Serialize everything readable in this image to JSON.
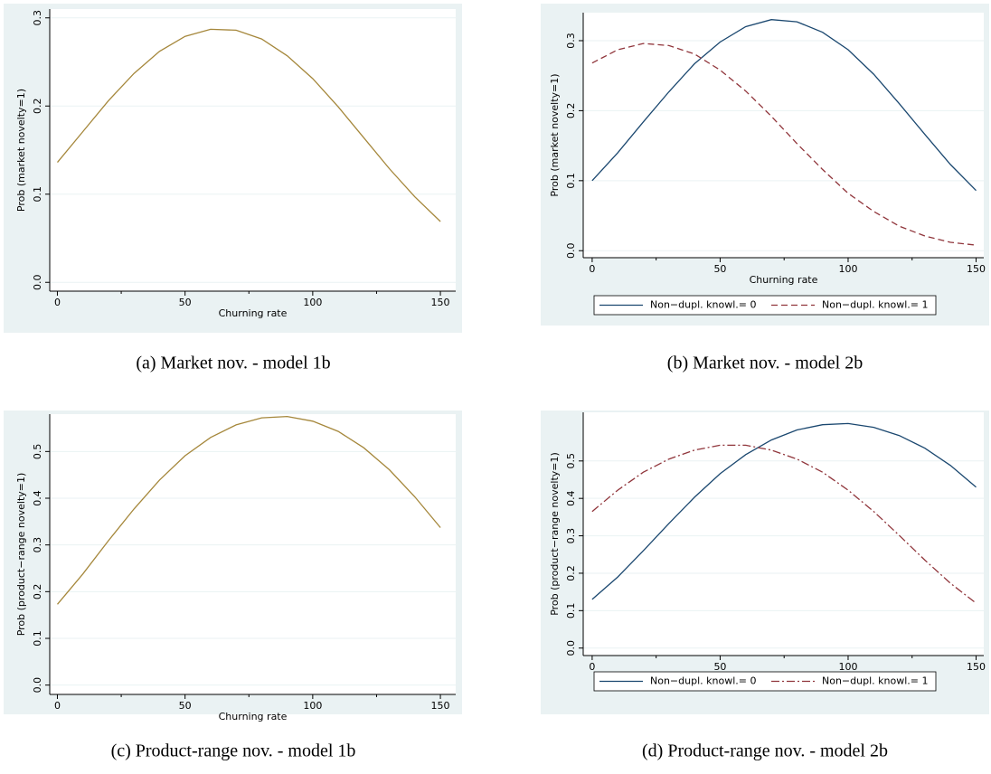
{
  "chart_data": [
    {
      "type": "line",
      "caption": "(a) Market nov. - model 1b",
      "xlabel": "Churning rate",
      "ylabel": "Prob (market novelty=1)",
      "x": [
        0,
        10,
        20,
        30,
        40,
        50,
        60,
        70,
        80,
        90,
        100,
        110,
        120,
        130,
        140,
        150
      ],
      "series": [
        {
          "color": "#a5873b",
          "style": "solid",
          "values": [
            0.136,
            0.171,
            0.206,
            0.237,
            0.262,
            0.279,
            0.287,
            0.286,
            0.276,
            0.257,
            0.231,
            0.199,
            0.164,
            0.129,
            0.097,
            0.069
          ]
        }
      ],
      "xlim": [
        -3,
        156
      ],
      "xticks": [
        0,
        50,
        100,
        150
      ],
      "xminorticks": [
        25,
        75,
        125
      ],
      "ylim": [
        -0.01,
        0.31
      ],
      "yticks": [
        {
          "value": 0,
          "label": "0.0"
        },
        0.1,
        0.2,
        0.3
      ],
      "grid": true
    },
    {
      "type": "line",
      "caption": "(b) Market nov. - model 2b",
      "xlabel": "Churning rate",
      "ylabel": "Prob (market novelty=1)",
      "x": [
        0,
        10,
        20,
        30,
        40,
        50,
        60,
        70,
        80,
        90,
        100,
        110,
        120,
        130,
        140,
        150
      ],
      "series": [
        {
          "name": "Non−dupl. knowl.= 0",
          "color": "#1a476f",
          "style": "solid",
          "values": [
            0.1,
            0.14,
            0.184,
            0.227,
            0.267,
            0.298,
            0.32,
            0.33,
            0.327,
            0.312,
            0.287,
            0.252,
            0.21,
            0.166,
            0.123,
            0.086
          ]
        },
        {
          "name": "Non−dupl. knowl.= 1",
          "color": "#90353b",
          "style": "dash",
          "values": [
            0.268,
            0.287,
            0.296,
            0.293,
            0.281,
            0.258,
            0.228,
            0.192,
            0.153,
            0.116,
            0.082,
            0.056,
            0.035,
            0.021,
            0.012,
            0.008
          ]
        }
      ],
      "xlim": [
        -3.5,
        153
      ],
      "xticks": [
        0,
        50,
        100,
        150
      ],
      "xminorticks": [
        25,
        75,
        125
      ],
      "ylim": [
        -0.01,
        0.34
      ],
      "yticks": [
        {
          "value": 0,
          "label": "0.0"
        },
        0.1,
        0.2,
        0.3
      ],
      "grid": true,
      "legend": "bottom"
    },
    {
      "type": "line",
      "caption": "(c) Product-range nov. - model 1b",
      "xlabel": "Churning rate",
      "ylabel": "Prob (product−range novelty=1)",
      "x": [
        0,
        10,
        20,
        30,
        40,
        50,
        60,
        70,
        80,
        90,
        100,
        110,
        120,
        130,
        140,
        150
      ],
      "series": [
        {
          "color": "#a5873b",
          "style": "solid",
          "values": [
            0.173,
            0.238,
            0.309,
            0.377,
            0.439,
            0.491,
            0.53,
            0.557,
            0.572,
            0.575,
            0.565,
            0.543,
            0.508,
            0.461,
            0.403,
            0.337
          ]
        }
      ],
      "xlim": [
        -3,
        156
      ],
      "xticks": [
        0,
        50,
        100,
        150
      ],
      "xminorticks": [
        25,
        75,
        125
      ],
      "ylim": [
        -0.02,
        0.58
      ],
      "yticks": [
        {
          "value": 0,
          "label": "0.0"
        },
        0.1,
        0.2,
        0.3,
        0.4,
        0.5
      ],
      "grid": true
    },
    {
      "type": "line",
      "caption": "(d) Product-range nov. - model 2b",
      "xlabel": "Churning rate",
      "ylabel": "Prob (product−range novelty=1)",
      "x": [
        0,
        10,
        20,
        30,
        40,
        50,
        60,
        70,
        80,
        90,
        100,
        110,
        120,
        130,
        140,
        150
      ],
      "series": [
        {
          "name": "Non−dupl. knowl.= 0",
          "color": "#1a476f",
          "style": "solid",
          "values": [
            0.13,
            0.19,
            0.26,
            0.333,
            0.403,
            0.466,
            0.517,
            0.556,
            0.583,
            0.597,
            0.6,
            0.59,
            0.568,
            0.534,
            0.488,
            0.43
          ]
        },
        {
          "name": "Non−dupl. knowl.= 1",
          "color": "#90353b",
          "style": "dashdot",
          "values": [
            0.365,
            0.422,
            0.47,
            0.505,
            0.529,
            0.542,
            0.542,
            0.529,
            0.505,
            0.47,
            0.422,
            0.365,
            0.301,
            0.235,
            0.173,
            0.12
          ]
        }
      ],
      "xlim": [
        -3.5,
        153
      ],
      "xticks": [
        0,
        50,
        100,
        150
      ],
      "xminorticks": [
        25,
        75,
        125
      ],
      "ylim": [
        -0.02,
        0.63
      ],
      "yticks": [
        {
          "value": 0,
          "label": "0.0"
        },
        0.1,
        0.2,
        0.3,
        0.4,
        0.5
      ],
      "grid": true,
      "legend": "bottom"
    }
  ]
}
